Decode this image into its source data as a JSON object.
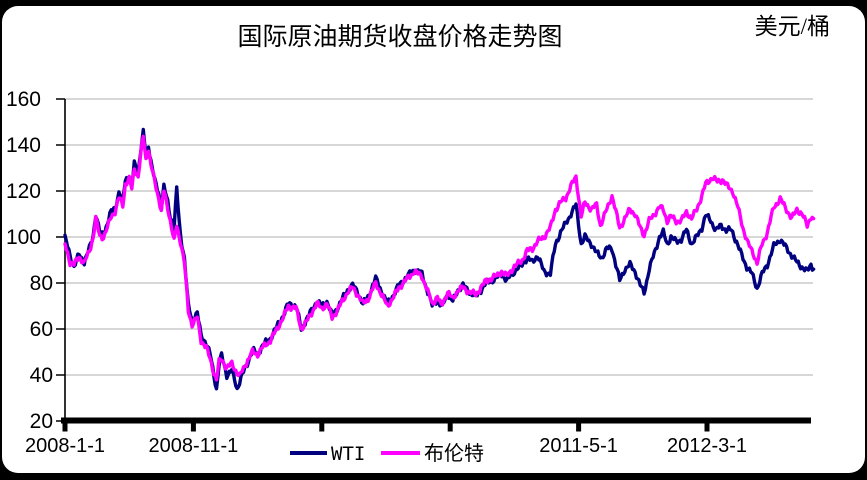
{
  "title": "国际原油期货收盘价格走势图",
  "unit_label": "美元/桶",
  "frame": {
    "background_color": "#000000",
    "canvas_color": "#ffffff"
  },
  "legend": [
    {
      "label": "WTI",
      "color": "#010180"
    },
    {
      "label": "布伦特",
      "color": "#ff00ff"
    }
  ],
  "chart_data": {
    "type": "line",
    "title": "国际原油期货收盘价格走势图",
    "ylabel": "美元/桶",
    "ylim": [
      20,
      160
    ],
    "yticks": [
      20,
      40,
      60,
      80,
      100,
      120,
      140,
      160
    ],
    "grid": true,
    "grid_color": "#bfbfbf",
    "axis_color": "#000000",
    "legend_position": "bottom",
    "x_unit": "months since 2008-01-01",
    "xticks": [
      {
        "month": 0,
        "label": "2008-1-1"
      },
      {
        "month": 10,
        "label": "2008-11-1"
      },
      {
        "month": 20,
        "label": ""
      },
      {
        "month": 30,
        "label": ""
      },
      {
        "month": 40,
        "label": "2011-5-1"
      },
      {
        "month": 50,
        "label": "2012-3-1"
      }
    ],
    "series": [
      {
        "name": "WTI",
        "color": "#010180",
        "points": [
          [
            0,
            99.6
          ],
          [
            0.4,
            92
          ],
          [
            0.7,
            87
          ],
          [
            1.1,
            92.5
          ],
          [
            1.5,
            89
          ],
          [
            1.9,
            95
          ],
          [
            2.2,
            101
          ],
          [
            2.4,
            110
          ],
          [
            2.7,
            102
          ],
          [
            3,
            101
          ],
          [
            3.3,
            106
          ],
          [
            3.6,
            111
          ],
          [
            3.9,
            113
          ],
          [
            4.2,
            119
          ],
          [
            4.5,
            116
          ],
          [
            4.7,
            125
          ],
          [
            5,
            127
          ],
          [
            5.2,
            122
          ],
          [
            5.4,
            132
          ],
          [
            5.7,
            128
          ],
          [
            5.9,
            138
          ],
          [
            6.1,
            145.3
          ],
          [
            6.3,
            136
          ],
          [
            6.5,
            140
          ],
          [
            6.7,
            133
          ],
          [
            7,
            124.1
          ],
          [
            7.3,
            119
          ],
          [
            7.5,
            113
          ],
          [
            7.7,
            122
          ],
          [
            8,
            115
          ],
          [
            8.2,
            109
          ],
          [
            8.5,
            104
          ],
          [
            8.7,
            120.9
          ],
          [
            8.9,
            106
          ],
          [
            9,
            100.6
          ],
          [
            9.3,
            91
          ],
          [
            9.6,
            70
          ],
          [
            9.9,
            64
          ],
          [
            10.3,
            67
          ],
          [
            10.6,
            57
          ],
          [
            11,
            54
          ],
          [
            11.3,
            49
          ],
          [
            11.6,
            40
          ],
          [
            11.8,
            33.9
          ],
          [
            12,
            44.6
          ],
          [
            12.2,
            48.6
          ],
          [
            12.6,
            40
          ],
          [
            13,
            42
          ],
          [
            13.4,
            34
          ],
          [
            13.8,
            40
          ],
          [
            14.2,
            45
          ],
          [
            14.6,
            51
          ],
          [
            15,
            49
          ],
          [
            15.4,
            53
          ],
          [
            16,
            56
          ],
          [
            16.5,
            61
          ],
          [
            17,
            66
          ],
          [
            17.4,
            71
          ],
          [
            18,
            70
          ],
          [
            18.4,
            60
          ],
          [
            18.8,
            64
          ],
          [
            19.2,
            68
          ],
          [
            19.6,
            72
          ],
          [
            20,
            70
          ],
          [
            20.4,
            72
          ],
          [
            20.8,
            66
          ],
          [
            21.2,
            69
          ],
          [
            21.6,
            73
          ],
          [
            22,
            77
          ],
          [
            22.4,
            79
          ],
          [
            22.8,
            76
          ],
          [
            23.2,
            71
          ],
          [
            23.6,
            74
          ],
          [
            24.2,
            82
          ],
          [
            25.1,
            71
          ],
          [
            25.6,
            75
          ],
          [
            26,
            79
          ],
          [
            26.5,
            82
          ],
          [
            27.2,
            86
          ],
          [
            27.8,
            84
          ],
          [
            28.6,
            70
          ],
          [
            29,
            73
          ],
          [
            29.3,
            69.5
          ],
          [
            29.8,
            75
          ],
          [
            30.2,
            72
          ],
          [
            30.6,
            77
          ],
          [
            31,
            79
          ],
          [
            31.5,
            76
          ],
          [
            32,
            74
          ],
          [
            32.4,
            77
          ],
          [
            32.8,
            80
          ],
          [
            33.2,
            81
          ],
          [
            33.6,
            82
          ],
          [
            34,
            84
          ],
          [
            34.4,
            81
          ],
          [
            34.8,
            84
          ],
          [
            35.2,
            86
          ],
          [
            35.6,
            88
          ],
          [
            36,
            91
          ],
          [
            36.4,
            89
          ],
          [
            36.8,
            92
          ],
          [
            37.3,
            85
          ],
          [
            37.8,
            84
          ],
          [
            38.2,
            97
          ],
          [
            38.6,
            102
          ],
          [
            39,
            106
          ],
          [
            39.4,
            110
          ],
          [
            39.8,
            113.9
          ],
          [
            40.2,
            97
          ],
          [
            40.5,
            100
          ],
          [
            41,
            97
          ],
          [
            41.4,
            93
          ],
          [
            41.8,
            91
          ],
          [
            42.2,
            95
          ],
          [
            42.6,
            95
          ],
          [
            43.2,
            81
          ],
          [
            43.6,
            86
          ],
          [
            44,
            88
          ],
          [
            44.4,
            85
          ],
          [
            44.8,
            79
          ],
          [
            45.1,
            75.7
          ],
          [
            45.5,
            86
          ],
          [
            45.9,
            93
          ],
          [
            46.3,
            100
          ],
          [
            46.6,
            102
          ],
          [
            46.9,
            97
          ],
          [
            47.2,
            100
          ],
          [
            47.6,
            98
          ],
          [
            48,
            99
          ],
          [
            48.4,
            103
          ],
          [
            48.8,
            97
          ],
          [
            49.2,
            100
          ],
          [
            49.6,
            104
          ],
          [
            49.9,
            109.5
          ],
          [
            50.3,
            107
          ],
          [
            50.7,
            103
          ],
          [
            51.1,
            105
          ],
          [
            51.5,
            103
          ],
          [
            51.9,
            103
          ],
          [
            52.3,
            98
          ],
          [
            52.7,
            92
          ],
          [
            53.1,
            87
          ],
          [
            53.5,
            84
          ],
          [
            53.9,
            77.7
          ],
          [
            54.3,
            84
          ],
          [
            54.7,
            88
          ],
          [
            55.2,
            96
          ],
          [
            55.7,
            99
          ],
          [
            56.2,
            95
          ],
          [
            56.6,
            92
          ],
          [
            57,
            89
          ],
          [
            57.4,
            87
          ],
          [
            57.8,
            85
          ],
          [
            58.1,
            88
          ],
          [
            58.3,
            86
          ]
        ]
      },
      {
        "name": "布伦特",
        "color": "#ff00ff",
        "points": [
          [
            0,
            96.7
          ],
          [
            0.4,
            89
          ],
          [
            0.7,
            88
          ],
          [
            1.1,
            91.5
          ],
          [
            1.5,
            88.5
          ],
          [
            1.9,
            94
          ],
          [
            2.2,
            100
          ],
          [
            2.4,
            108
          ],
          [
            2.7,
            100.5
          ],
          [
            3,
            100
          ],
          [
            3.3,
            104
          ],
          [
            3.6,
            109
          ],
          [
            3.9,
            111
          ],
          [
            4.2,
            117
          ],
          [
            4.5,
            114
          ],
          [
            4.7,
            123
          ],
          [
            5,
            125
          ],
          [
            5.2,
            121
          ],
          [
            5.4,
            130
          ],
          [
            5.7,
            126
          ],
          [
            5.9,
            136
          ],
          [
            6.1,
            144.2
          ],
          [
            6.3,
            134
          ],
          [
            6.5,
            138
          ],
          [
            6.7,
            131
          ],
          [
            7,
            124
          ],
          [
            7.3,
            117
          ],
          [
            7.5,
            111
          ],
          [
            7.7,
            120
          ],
          [
            8,
            113
          ],
          [
            8.2,
            107
          ],
          [
            8.5,
            98
          ],
          [
            8.7,
            105
          ],
          [
            8.9,
            100
          ],
          [
            9,
            98
          ],
          [
            9.3,
            89
          ],
          [
            9.6,
            68
          ],
          [
            9.9,
            62
          ],
          [
            10.3,
            65
          ],
          [
            10.6,
            55
          ],
          [
            11,
            52
          ],
          [
            11.3,
            47
          ],
          [
            11.6,
            41
          ],
          [
            11.8,
            38
          ],
          [
            12,
            45.6
          ],
          [
            12.2,
            47
          ],
          [
            12.6,
            43
          ],
          [
            13,
            45
          ],
          [
            13.4,
            41
          ],
          [
            13.6,
            39.4
          ],
          [
            14,
            44
          ],
          [
            14.6,
            50
          ],
          [
            15,
            49
          ],
          [
            15.4,
            52
          ],
          [
            16,
            55
          ],
          [
            16.5,
            60
          ],
          [
            17,
            65
          ],
          [
            17.4,
            70
          ],
          [
            18,
            69
          ],
          [
            18.4,
            60
          ],
          [
            18.8,
            63
          ],
          [
            19.2,
            67
          ],
          [
            19.6,
            71
          ],
          [
            20,
            69
          ],
          [
            20.4,
            71
          ],
          [
            20.8,
            65
          ],
          [
            21.2,
            68
          ],
          [
            21.6,
            72
          ],
          [
            22,
            76
          ],
          [
            22.4,
            78
          ],
          [
            22.8,
            75
          ],
          [
            23.2,
            71
          ],
          [
            23.6,
            73
          ],
          [
            24.2,
            80
          ],
          [
            25.1,
            70
          ],
          [
            25.6,
            74
          ],
          [
            26,
            78
          ],
          [
            26.5,
            81
          ],
          [
            27.2,
            85
          ],
          [
            27.8,
            83
          ],
          [
            28.6,
            71
          ],
          [
            29,
            74
          ],
          [
            29.3,
            70
          ],
          [
            29.8,
            76
          ],
          [
            30.2,
            73
          ],
          [
            30.6,
            77
          ],
          [
            31,
            78
          ],
          [
            31.5,
            76
          ],
          [
            32,
            75
          ],
          [
            32.4,
            78
          ],
          [
            32.8,
            81
          ],
          [
            33.2,
            82
          ],
          [
            33.6,
            83
          ],
          [
            34,
            85
          ],
          [
            34.4,
            83
          ],
          [
            34.8,
            86
          ],
          [
            35.2,
            88
          ],
          [
            35.6,
            90
          ],
          [
            36,
            94
          ],
          [
            36.4,
            95
          ],
          [
            36.8,
            98
          ],
          [
            37.3,
            100
          ],
          [
            37.8,
            104
          ],
          [
            38.2,
            112
          ],
          [
            38.6,
            115
          ],
          [
            39,
            117
          ],
          [
            39.4,
            122
          ],
          [
            39.8,
            126.2
          ],
          [
            40.2,
            109
          ],
          [
            40.5,
            115
          ],
          [
            41,
            112
          ],
          [
            41.4,
            114
          ],
          [
            41.7,
            105
          ],
          [
            42.2,
            112
          ],
          [
            42.6,
            118
          ],
          [
            43.2,
            104
          ],
          [
            43.6,
            108
          ],
          [
            44,
            112
          ],
          [
            44.4,
            110
          ],
          [
            44.8,
            104
          ],
          [
            45.1,
            101
          ],
          [
            45.5,
            107
          ],
          [
            45.9,
            110
          ],
          [
            46.3,
            113
          ],
          [
            46.6,
            112
          ],
          [
            46.9,
            107
          ],
          [
            47.2,
            109
          ],
          [
            47.6,
            107
          ],
          [
            48,
            107
          ],
          [
            48.4,
            111
          ],
          [
            48.8,
            108
          ],
          [
            49.2,
            112
          ],
          [
            49.6,
            118
          ],
          [
            49.9,
            123
          ],
          [
            50.4,
            125.9
          ],
          [
            50.8,
            124
          ],
          [
            51.2,
            125
          ],
          [
            51.6,
            122
          ],
          [
            52,
            120
          ],
          [
            52.4,
            113
          ],
          [
            52.8,
            104
          ],
          [
            53.2,
            97
          ],
          [
            53.6,
            93
          ],
          [
            53.9,
            88.7
          ],
          [
            54.3,
            97
          ],
          [
            54.7,
            102
          ],
          [
            55.2,
            113
          ],
          [
            55.7,
            116.5
          ],
          [
            56.2,
            112
          ],
          [
            56.6,
            108
          ],
          [
            57,
            112
          ],
          [
            57.4,
            110
          ],
          [
            57.8,
            105
          ],
          [
            58.1,
            109
          ],
          [
            58.3,
            108
          ]
        ]
      }
    ]
  }
}
